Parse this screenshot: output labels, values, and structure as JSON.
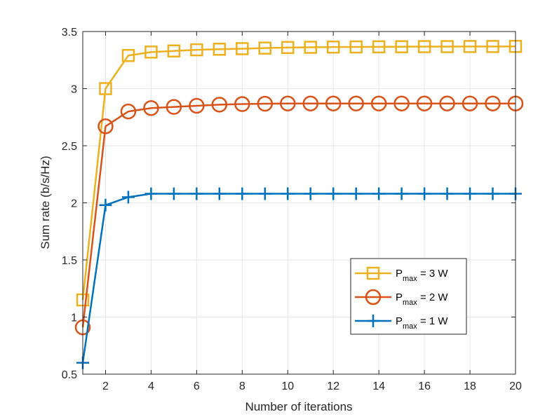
{
  "chart_data": {
    "type": "line",
    "title": "",
    "xlabel": "Number of iterations",
    "ylabel": "Sum rate (b/s/Hz)",
    "xlim": [
      1,
      20
    ],
    "ylim": [
      0.5,
      3.5
    ],
    "xticks": [
      2,
      4,
      6,
      8,
      10,
      12,
      14,
      16,
      18,
      20
    ],
    "xtick_labels": [
      "2",
      "4",
      "6",
      "8",
      "10",
      "12",
      "14",
      "16",
      "18",
      "20"
    ],
    "yticks": [
      0.5,
      1,
      1.5,
      2,
      2.5,
      3,
      3.5
    ],
    "ytick_labels": [
      "0.5",
      "1",
      "1.5",
      "2",
      "2.5",
      "3",
      "3.5"
    ],
    "grid": true,
    "legend_position": "center-right",
    "x": [
      1,
      2,
      3,
      4,
      5,
      6,
      7,
      8,
      9,
      10,
      11,
      12,
      13,
      14,
      15,
      16,
      17,
      18,
      19,
      20
    ],
    "series": [
      {
        "name": "P_max = 3 W",
        "label_main": "P",
        "label_sub": "max",
        "label_rest": " = 3 W",
        "color": "#EDB120",
        "marker": "square",
        "values": [
          1.15,
          3.0,
          3.29,
          3.32,
          3.33,
          3.34,
          3.345,
          3.35,
          3.355,
          3.36,
          3.362,
          3.364,
          3.365,
          3.366,
          3.367,
          3.368,
          3.368,
          3.369,
          3.369,
          3.37
        ]
      },
      {
        "name": "P_max = 2 W",
        "label_main": "P",
        "label_sub": "max",
        "label_rest": " = 2 W",
        "color": "#D95319",
        "marker": "circle",
        "values": [
          0.91,
          2.67,
          2.8,
          2.83,
          2.84,
          2.85,
          2.86,
          2.865,
          2.868,
          2.87,
          2.87,
          2.87,
          2.87,
          2.87,
          2.87,
          2.87,
          2.87,
          2.87,
          2.87,
          2.87
        ]
      },
      {
        "name": "P_max = 1 W",
        "label_main": "P",
        "label_sub": "max",
        "label_rest": " = 1 W",
        "color": "#0072BD",
        "marker": "plus",
        "values": [
          0.6,
          1.98,
          2.05,
          2.08,
          2.08,
          2.08,
          2.08,
          2.08,
          2.08,
          2.08,
          2.08,
          2.08,
          2.08,
          2.08,
          2.08,
          2.08,
          2.08,
          2.08,
          2.08,
          2.08
        ]
      }
    ]
  }
}
